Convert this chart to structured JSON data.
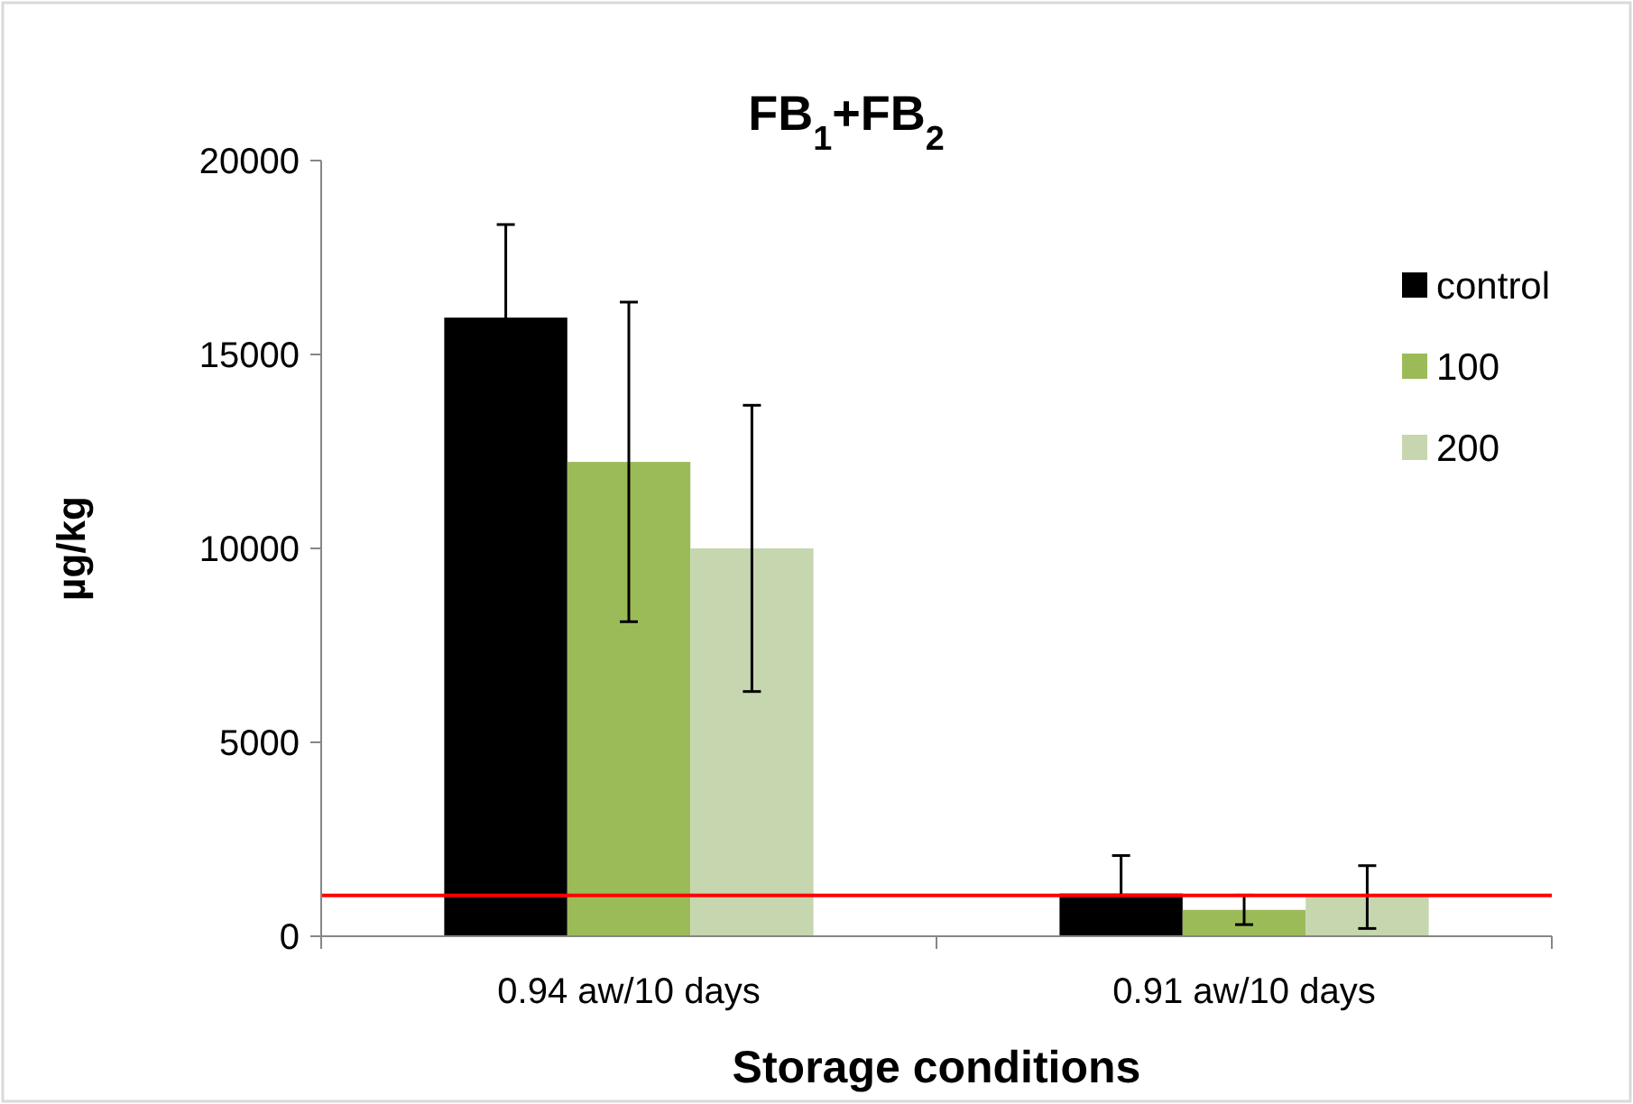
{
  "chart_data": {
    "type": "bar",
    "title": "FB$_{1}$+FB$_{2}$",
    "xlabel": "Storage conditions",
    "ylabel": "µg/kg",
    "categories": [
      "0.94 aw/10 days",
      "0.91 aw/10 days"
    ],
    "series": [
      {
        "name": "control",
        "color": "#000000",
        "values": [
          15950,
          1100
        ],
        "errors": [
          2400,
          980
        ]
      },
      {
        "name": "100",
        "color": "#9bbb59",
        "values": [
          12230,
          680
        ],
        "errors": [
          4120,
          380
        ]
      },
      {
        "name": "200",
        "color": "#c6d6ae",
        "values": [
          10000,
          1010
        ],
        "errors": [
          3690,
          810
        ]
      }
    ],
    "ylim": [
      0,
      20000
    ],
    "yticks": [
      0,
      5000,
      10000,
      15000,
      20000
    ],
    "ref_lines": [
      {
        "axis": "y",
        "value": 1050,
        "color": "#ff0000"
      }
    ],
    "legend": "top right",
    "grid": false
  }
}
